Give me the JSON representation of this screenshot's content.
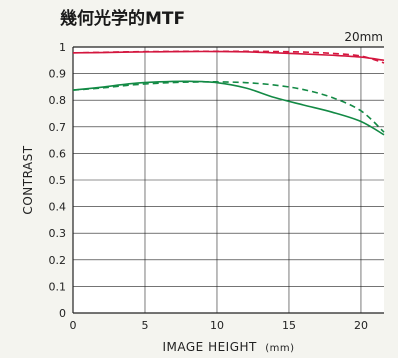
{
  "chart_data": {
    "type": "line",
    "title": "幾何光学的MTF",
    "annotation": "20mm",
    "xlabel": "IMAGE HEIGHT",
    "xlabel_unit": "(mm)",
    "ylabel": "CONTRAST",
    "xlim": [
      0,
      21.6
    ],
    "ylim": [
      0,
      1
    ],
    "x_ticks": [
      0,
      5,
      10,
      15,
      20
    ],
    "y_ticks": [
      0,
      0.1,
      0.2,
      0.3,
      0.4,
      0.5,
      0.6,
      0.7,
      0.8,
      0.9,
      1
    ],
    "y_tick_labels": [
      "0",
      "0.1",
      "0.2",
      "0.3",
      "0.4",
      "0.5",
      "0.6",
      "0.7",
      "0.8",
      "0.9",
      "1"
    ],
    "grid": true,
    "colors": {
      "red": "#d4173f",
      "green": "#138a45",
      "grid": "#222222",
      "background": "#ffffff"
    },
    "series": [
      {
        "color": "#d4173f",
        "dash": "solid",
        "x": [
          0,
          2,
          4,
          6,
          8,
          10,
          12,
          14,
          16,
          18,
          20,
          21.6
        ],
        "y": [
          0.978,
          0.979,
          0.981,
          0.982,
          0.983,
          0.983,
          0.982,
          0.978,
          0.974,
          0.969,
          0.962,
          0.95
        ]
      },
      {
        "color": "#d4173f",
        "dash": "dashed",
        "x": [
          0,
          2,
          4,
          6,
          8,
          10,
          12,
          14,
          16,
          18,
          20,
          21.6
        ],
        "y": [
          0.978,
          0.98,
          0.982,
          0.983,
          0.984,
          0.984,
          0.984,
          0.983,
          0.981,
          0.976,
          0.966,
          0.94
        ]
      },
      {
        "color": "#138a45",
        "dash": "solid",
        "x": [
          0,
          2,
          4,
          6,
          8,
          10,
          12,
          14,
          16,
          18,
          20,
          21.6
        ],
        "y": [
          0.838,
          0.849,
          0.862,
          0.869,
          0.871,
          0.866,
          0.846,
          0.81,
          0.782,
          0.755,
          0.72,
          0.67
        ]
      },
      {
        "color": "#138a45",
        "dash": "dashed",
        "x": [
          0,
          2,
          4,
          6,
          8,
          10,
          12,
          14,
          16,
          18,
          20,
          21.6
        ],
        "y": [
          0.838,
          0.846,
          0.857,
          0.864,
          0.868,
          0.869,
          0.866,
          0.857,
          0.84,
          0.81,
          0.76,
          0.68
        ]
      }
    ]
  }
}
